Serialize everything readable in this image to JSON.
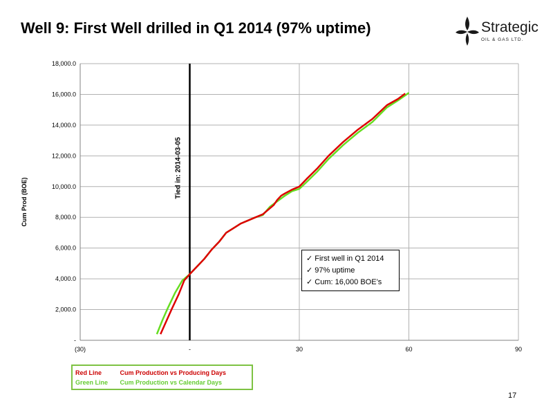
{
  "slide": {
    "title": "Well 9: First Well drilled in Q1 2014 (97% uptime)",
    "page_number": "17",
    "logo": {
      "name": "Strategic",
      "tagline": "OIL & GAS LTD.",
      "color": "#1a1a1a"
    }
  },
  "callout": {
    "items": [
      "First well in Q1 2014",
      "97% uptime",
      "Cum: 16,000 BOE’s"
    ],
    "check_icon": "✓"
  },
  "legend": {
    "rows": [
      {
        "name": "Red Line",
        "desc": "Cum Production vs Producing Days",
        "color": "#cc0000"
      },
      {
        "name": "Green Line",
        "desc": "Cum Production vs Calendar Days",
        "color": "#66cc33"
      }
    ]
  },
  "chart_data": {
    "type": "line",
    "ylabel": "Cum Prod (BOE)",
    "xlim": [
      -30,
      90
    ],
    "ylim": [
      0,
      18000
    ],
    "x_tick_values": [
      -30,
      0,
      30,
      60,
      90
    ],
    "x_tick_labels": [
      "(30)",
      "-",
      "30",
      "60",
      "90"
    ],
    "y_tick_values": [
      0,
      2000,
      4000,
      6000,
      8000,
      10000,
      12000,
      14000,
      16000,
      18000
    ],
    "y_tick_labels": [
      "-",
      "2,000.0",
      "4,000.0",
      "6,000.0",
      "8,000.0",
      "10,000.0",
      "12,000.0",
      "14,000.0",
      "16,000.0",
      "18,000.0"
    ],
    "grid": true,
    "vline": {
      "x": 0,
      "label": "Tied in: 2014-03-05"
    },
    "series": [
      {
        "name": "Red Line",
        "color": "#dd0000",
        "x": [
          -8,
          -6.5,
          -5,
          -3,
          -1.5,
          0,
          2,
          4,
          6,
          8,
          10,
          12,
          14,
          16,
          18,
          20,
          22,
          23,
          24,
          25,
          26,
          28,
          30,
          32,
          35,
          38,
          42,
          46,
          50,
          54,
          57,
          59
        ],
        "y": [
          400,
          1200,
          2000,
          3000,
          3900,
          4300,
          4800,
          5300,
          5900,
          6400,
          7000,
          7300,
          7600,
          7800,
          8000,
          8200,
          8600,
          8800,
          9150,
          9400,
          9550,
          9800,
          10000,
          10500,
          11200,
          12000,
          12900,
          13700,
          14400,
          15300,
          15700,
          16050
        ]
      },
      {
        "name": "Green Line",
        "color": "#66dd22",
        "x": [
          -9,
          -7.5,
          -6,
          -4,
          -2,
          0,
          2,
          4,
          6,
          8,
          10,
          12,
          14,
          16,
          18,
          20,
          22,
          24,
          26,
          28,
          30,
          32,
          35,
          38,
          42,
          46,
          50,
          54,
          57,
          60
        ],
        "y": [
          400,
          1300,
          2100,
          3100,
          3900,
          4300,
          4800,
          5300,
          5900,
          6400,
          7000,
          7300,
          7600,
          7800,
          8000,
          8150,
          8700,
          9050,
          9400,
          9700,
          9850,
          10300,
          11000,
          11800,
          12700,
          13500,
          14200,
          15150,
          15600,
          16100
        ]
      }
    ]
  }
}
